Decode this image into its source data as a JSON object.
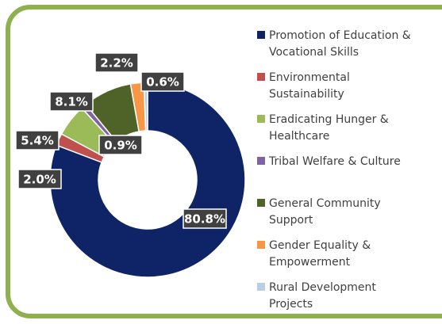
{
  "chart_data": {
    "type": "donut",
    "categories": [
      "Promotion of Education & Vocational Skills",
      "Environmental Sustainability",
      "Eradicating Hunger & Healthcare",
      "Tribal Welfare & Culture",
      "General Community Support",
      "Gender Equality & Empowerment",
      "Rural Development Projects"
    ],
    "values": [
      80.8,
      2.0,
      5.4,
      0.9,
      8.1,
      2.2,
      0.6
    ],
    "value_labels": [
      "80.8%",
      "2.0%",
      "5.4%",
      "0.9%",
      "8.1%",
      "2.2%",
      "0.6%"
    ],
    "colors": [
      "#0f2466",
      "#c0504d",
      "#9bbb59",
      "#8064a2",
      "#4f6228",
      "#f79646",
      "#b9cde5"
    ],
    "legend": "right"
  }
}
